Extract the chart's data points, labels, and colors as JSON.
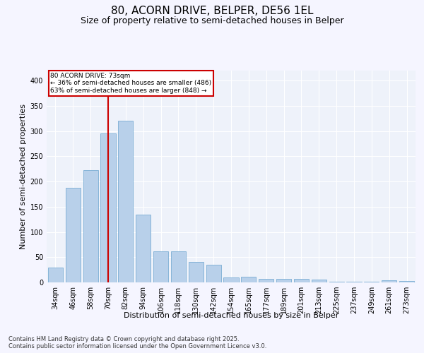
{
  "title1": "80, ACORN DRIVE, BELPER, DE56 1EL",
  "title2": "Size of property relative to semi-detached houses in Belper",
  "xlabel": "Distribution of semi-detached houses by size in Belper",
  "ylabel": "Number of semi-detached properties",
  "categories": [
    "34sqm",
    "46sqm",
    "58sqm",
    "70sqm",
    "82sqm",
    "94sqm",
    "106sqm",
    "118sqm",
    "130sqm",
    "142sqm",
    "154sqm",
    "165sqm",
    "177sqm",
    "189sqm",
    "201sqm",
    "213sqm",
    "225sqm",
    "237sqm",
    "249sqm",
    "261sqm",
    "273sqm"
  ],
  "values": [
    30,
    188,
    222,
    295,
    320,
    135,
    62,
    62,
    40,
    35,
    10,
    11,
    7,
    7,
    7,
    5,
    2,
    1,
    1,
    4,
    3
  ],
  "bar_color": "#b8d0ea",
  "bar_edge_color": "#7aadd4",
  "vline_label": "80 ACORN DRIVE: 73sqm",
  "annotation_smaller": "← 36% of semi-detached houses are smaller (486)",
  "annotation_larger": "63% of semi-detached houses are larger (848) →",
  "annotation_box_color": "#ffffff",
  "annotation_box_edge": "#cc0000",
  "vline_color": "#cc0000",
  "ylim": [
    0,
    420
  ],
  "yticks": [
    0,
    50,
    100,
    150,
    200,
    250,
    300,
    350,
    400
  ],
  "background_color": "#eef2fa",
  "footer1": "Contains HM Land Registry data © Crown copyright and database right 2025.",
  "footer2": "Contains public sector information licensed under the Open Government Licence v3.0.",
  "title_fontsize": 11,
  "subtitle_fontsize": 9,
  "tick_fontsize": 7,
  "label_fontsize": 8,
  "footer_fontsize": 6
}
